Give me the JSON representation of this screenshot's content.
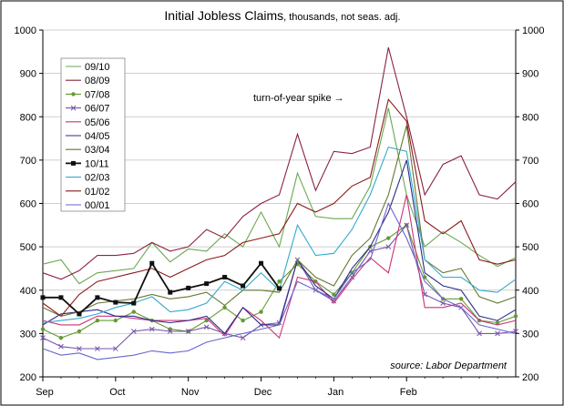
{
  "chart_data": {
    "type": "line",
    "title": "Initial Jobless Claims",
    "subtitle": ", thousands, not seas. adj.",
    "ylim": [
      200,
      1000
    ],
    "yticks": [
      200,
      300,
      400,
      500,
      600,
      700,
      800,
      900,
      1000
    ],
    "ytick_labels": [
      "200",
      "300",
      "400",
      "500",
      "600",
      "700",
      "800",
      "900",
      "1000"
    ],
    "xlim": [
      0,
      26
    ],
    "xticks": [
      0,
      4,
      8,
      12,
      16,
      20
    ],
    "xtick_labels": [
      "Sep",
      "Oct",
      "Nov",
      "Dec",
      "Jan",
      "Feb"
    ],
    "grid": true,
    "legend_placement": "upper-left",
    "annotation": "turn-of-year spike →",
    "source": "source: Labor Department",
    "series": [
      {
        "name": "09/10",
        "color": "#6aa84f",
        "marker": "none",
        "values": [
          460,
          470,
          415,
          440,
          445,
          450,
          510,
          465,
          495,
          490,
          530,
          500,
          580,
          500,
          670,
          570,
          565,
          565,
          640,
          820,
          620,
          500,
          535,
          510,
          480,
          455,
          475
        ]
      },
      {
        "name": "08/09",
        "color": "#8b2242",
        "marker": "none",
        "values": [
          440,
          425,
          445,
          480,
          480,
          485,
          510,
          490,
          500,
          540,
          520,
          570,
          600,
          620,
          760,
          630,
          720,
          715,
          730,
          960,
          800,
          620,
          690,
          710,
          620,
          610,
          650
        ]
      },
      {
        "name": "07/08",
        "color": "#669933",
        "marker": "dot",
        "values": [
          310,
          290,
          305,
          330,
          330,
          350,
          330,
          310,
          305,
          330,
          360,
          330,
          350,
          420,
          460,
          420,
          390,
          440,
          500,
          520,
          550,
          430,
          380,
          380,
          330,
          325,
          340
        ]
      },
      {
        "name": "06/07",
        "color": "#7755aa",
        "marker": "x",
        "values": [
          290,
          270,
          265,
          265,
          265,
          305,
          310,
          305,
          305,
          315,
          300,
          290,
          320,
          325,
          470,
          400,
          375,
          430,
          490,
          500,
          550,
          390,
          370,
          360,
          300,
          300,
          305
        ]
      },
      {
        "name": "05/06",
        "color": "#cc3377",
        "marker": "none",
        "values": [
          330,
          320,
          320,
          340,
          340,
          335,
          330,
          330,
          330,
          335,
          295,
          360,
          330,
          290,
          430,
          420,
          370,
          425,
          475,
          440,
          620,
          360,
          360,
          370,
          330,
          320,
          330
        ]
      },
      {
        "name": "04/05",
        "color": "#2b2b88",
        "marker": "none",
        "values": [
          320,
          345,
          350,
          355,
          340,
          340,
          330,
          325,
          330,
          340,
          300,
          360,
          320,
          320,
          470,
          410,
          380,
          450,
          500,
          580,
          700,
          440,
          410,
          400,
          340,
          330,
          355
        ]
      },
      {
        "name": "03/04",
        "color": "#667733",
        "marker": "none",
        "values": [
          360,
          340,
          350,
          370,
          375,
          380,
          390,
          380,
          385,
          395,
          365,
          400,
          400,
          395,
          470,
          430,
          410,
          480,
          520,
          620,
          780,
          470,
          440,
          450,
          385,
          370,
          385
        ]
      },
      {
        "name": "10/11",
        "color": "#111111",
        "marker": "square",
        "values": [
          383,
          383,
          345,
          383,
          372,
          370,
          462,
          395,
          405,
          415,
          430,
          410,
          462,
          404
        ]
      },
      {
        "name": "02/03",
        "color": "#33aacc",
        "marker": "none",
        "values": [
          325,
          330,
          335,
          345,
          360,
          370,
          385,
          350,
          355,
          370,
          420,
          400,
          440,
          400,
          550,
          480,
          485,
          540,
          620,
          730,
          720,
          470,
          430,
          430,
          400,
          395,
          425
        ]
      },
      {
        "name": "01/02",
        "color": "#8b1a1a",
        "marker": "none",
        "values": [
          370,
          340,
          390,
          420,
          430,
          440,
          450,
          430,
          450,
          470,
          480,
          510,
          520,
          530,
          600,
          580,
          600,
          640,
          660,
          840,
          790,
          560,
          530,
          560,
          470,
          460,
          470
        ]
      },
      {
        "name": "00/01",
        "color": "#6666cc",
        "marker": "none",
        "values": [
          265,
          250,
          255,
          240,
          245,
          250,
          260,
          255,
          260,
          280,
          290,
          300,
          310,
          320,
          420,
          400,
          380,
          440,
          470,
          600,
          520,
          420,
          380,
          360,
          320,
          310,
          300
        ]
      }
    ]
  }
}
